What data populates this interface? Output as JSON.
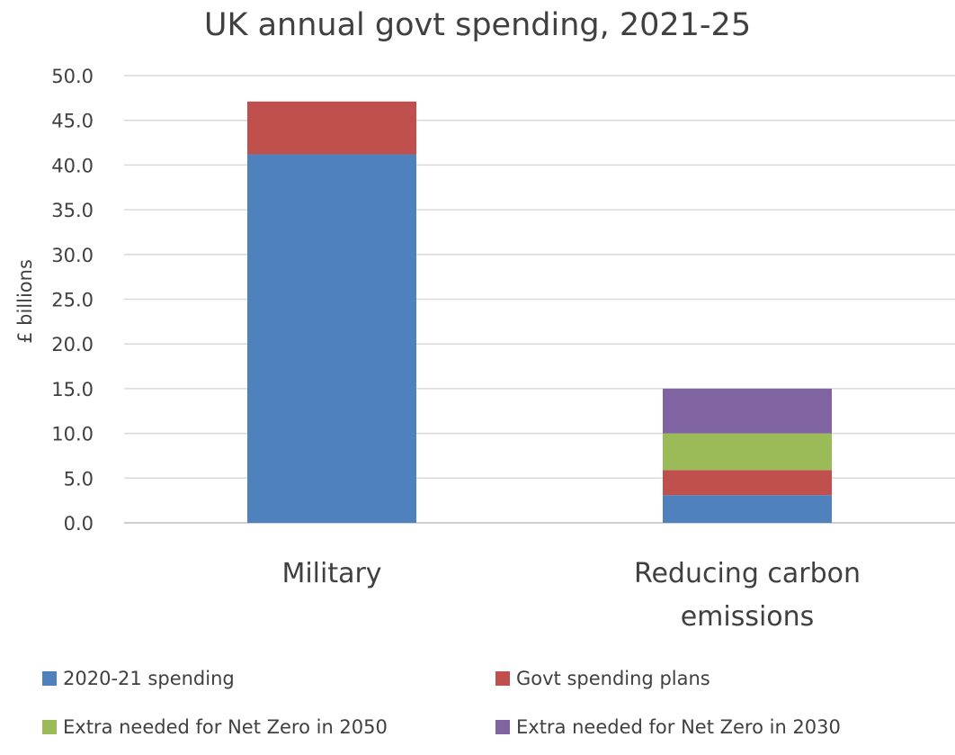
{
  "chart_data": {
    "type": "bar",
    "stacked": true,
    "title": "UK annual govt spending, 2021-25",
    "ylabel": "£ billions",
    "xlabel": "",
    "ylim": [
      0,
      50
    ],
    "ytick_step": 5,
    "yticks": [
      "0.0",
      "5.0",
      "10.0",
      "15.0",
      "20.0",
      "25.0",
      "30.0",
      "35.0",
      "40.0",
      "45.0",
      "50.0"
    ],
    "grid": true,
    "legend_position": "bottom",
    "categories": [
      "Military",
      "Reducing carbon\nemissions"
    ],
    "series": [
      {
        "name": "2020-21 spending",
        "color": "#4F81BD",
        "values": [
          41.2,
          3.1
        ]
      },
      {
        "name": "Govt spending plans",
        "color": "#C0504D",
        "values": [
          5.9,
          2.8
        ]
      },
      {
        "name": "Extra needed for Net Zero in 2050",
        "color": "#9BBB59",
        "values": [
          0,
          4.1
        ]
      },
      {
        "name": "Extra needed for Net Zero in 2030",
        "color": "#8064A2",
        "values": [
          0,
          5.0
        ]
      }
    ]
  }
}
